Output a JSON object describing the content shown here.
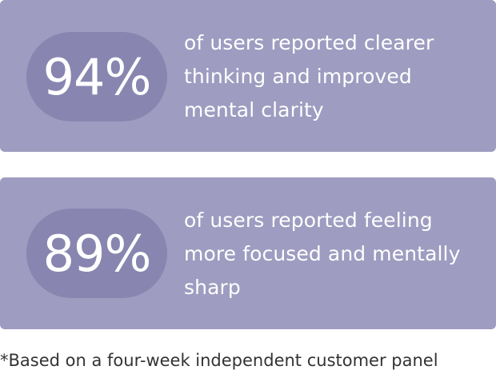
{
  "stats": [
    {
      "value": "94%",
      "description": "of users reported clearer\nthinking and improved\nmental clarity"
    },
    {
      "value": "89%",
      "description": "of users reported feeling\nmore focused and mentally\nsharp"
    }
  ],
  "footnote": "*Based on a four-week independent customer panel",
  "colors": {
    "card_background": "#9e9cc0",
    "pill_background": "#8886b0",
    "text_on_card": "#ffffff",
    "footnote_text": "#333333"
  }
}
